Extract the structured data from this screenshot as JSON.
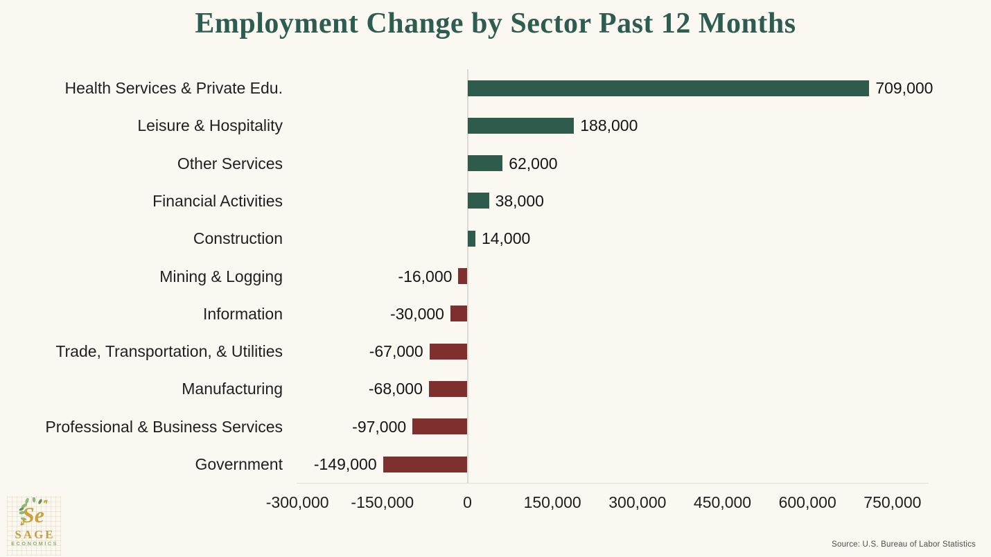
{
  "chart_data": {
    "type": "bar",
    "orientation": "horizontal",
    "title": "Employment Change by Sector Past 12 Months",
    "categories": [
      "Health Services & Private Edu.",
      "Leisure & Hospitality",
      "Other Services",
      "Financial Activities",
      "Construction",
      "Mining & Logging",
      "Information",
      "Trade, Transportation, & Utilities",
      "Manufacturing",
      "Professional & Business Services",
      "Government"
    ],
    "values": [
      709000,
      188000,
      62000,
      38000,
      14000,
      -16000,
      -30000,
      -67000,
      -68000,
      -97000,
      -149000
    ],
    "value_labels": [
      "709,000",
      "188,000",
      "62,000",
      "38,000",
      "14,000",
      "-16,000",
      "-30,000",
      "-67,000",
      "-68,000",
      "-97,000",
      "-149,000"
    ],
    "x_ticks": [
      "-300,000",
      "-150,000",
      "0",
      "150,000",
      "300,000",
      "450,000",
      "600,000",
      "750,000"
    ],
    "x_tick_values": [
      -300000,
      -150000,
      0,
      150000,
      300000,
      450000,
      600000,
      750000
    ],
    "xlim": [
      -300000,
      750000
    ],
    "grid": false,
    "legend": null,
    "positive_color": "#2F5B4D",
    "negative_color": "#7F2F2D",
    "title_color": "#2D5C50",
    "background_color": "#FBF8F1"
  },
  "branding": {
    "logo_text": "SAGE",
    "logo_subtext": "ECONOMICS"
  },
  "source_note": "Source: U.S. Bureau of Labor Statistics"
}
